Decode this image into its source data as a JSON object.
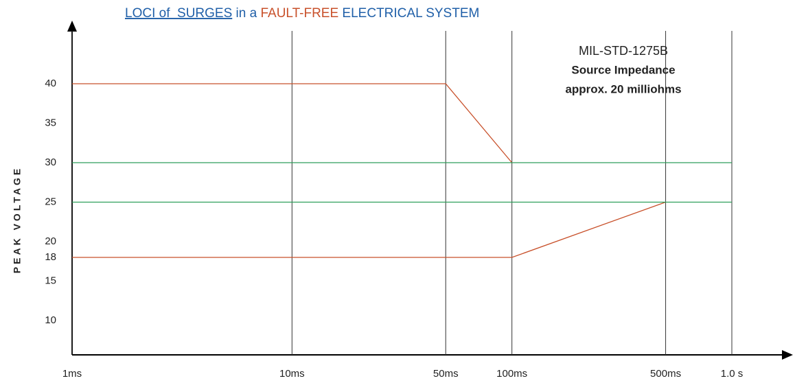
{
  "chart_data": {
    "type": "line",
    "title": [
      {
        "text": "LOCI of  SURGES",
        "color": "#1f5fa8",
        "underline": true
      },
      {
        "text": " in a ",
        "color": "#1f5fa8"
      },
      {
        "text": "FAULT-FREE",
        "color": "#c8502a"
      },
      {
        "text": " ELECTRICAL SYSTEM",
        "color": "#1f5fa8"
      }
    ],
    "y_label": "PEAK VOLTAGE",
    "annotations": [
      {
        "text": "MIL-STD-1275B",
        "bold": false
      },
      {
        "text": "Source Impedance",
        "bold": true
      },
      {
        "text": "approx. 20 milliohms",
        "bold": true
      }
    ],
    "annotation_color": "#a0583a",
    "x_log": true,
    "xlim": [
      1,
      1000
    ],
    "xticks": [
      {
        "value": 1,
        "label": "1ms"
      },
      {
        "value": 10,
        "label": "10ms"
      },
      {
        "value": 50,
        "label": "50ms"
      },
      {
        "value": 100,
        "label": "100ms"
      },
      {
        "value": 500,
        "label": "500ms"
      },
      {
        "value": 1000,
        "label": "1.0 s"
      }
    ],
    "ylim": [
      6,
      47
    ],
    "yticks": [
      10,
      15,
      18,
      20,
      25,
      30,
      35,
      40
    ],
    "grid_x": true,
    "series": [
      {
        "color": "#c8502a",
        "x": [
          1,
          50,
          100
        ],
        "values": [
          40,
          40,
          30
        ]
      },
      {
        "color": "#c8502a",
        "x": [
          1,
          100,
          500
        ],
        "values": [
          18,
          18,
          25
        ]
      },
      {
        "color": "#2e9e5a",
        "x": [
          1,
          1000
        ],
        "values": [
          30,
          30
        ]
      },
      {
        "color": "#2e9e5a",
        "x": [
          1,
          1000
        ],
        "values": [
          25,
          25
        ]
      }
    ]
  }
}
